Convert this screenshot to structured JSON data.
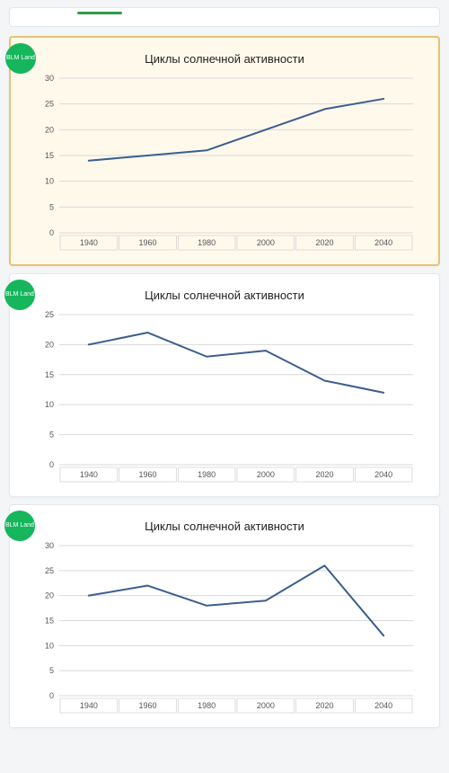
{
  "badge_text": "BLM\nLand",
  "badge_color": "#15b65c",
  "top_accent_color": "#2f9c48",
  "page_bg": "#f3f5f7",
  "selected_bg": "#fff9ec",
  "selected_border": "#e8c271",
  "card_border": "#e4e8eb",
  "charts": [
    {
      "selected": true,
      "title": "Циклы солнечной активности",
      "type": "line",
      "categories": [
        "1940",
        "1960",
        "1980",
        "2000",
        "2020",
        "2040"
      ],
      "values": [
        14,
        15,
        16,
        20,
        24,
        26
      ],
      "ylim": [
        0,
        30
      ],
      "ytick_step": 5,
      "line_color": "#3a5f8f",
      "line_width": 2,
      "grid_color": "#d9d9d9",
      "axis_color": "#cfcfcf",
      "label_color": "#555555",
      "label_fontsize": 9,
      "title_fontsize": 13
    },
    {
      "selected": false,
      "title": "Циклы солнечной активности",
      "type": "line",
      "categories": [
        "1940",
        "1960",
        "1980",
        "2000",
        "2020",
        "2040"
      ],
      "values": [
        20,
        22,
        18,
        19,
        14,
        12
      ],
      "ylim": [
        0,
        25
      ],
      "ytick_step": 5,
      "line_color": "#3a5f8f",
      "line_width": 2,
      "grid_color": "#d9d9d9",
      "axis_color": "#cfcfcf",
      "label_color": "#555555",
      "label_fontsize": 9,
      "title_fontsize": 13
    },
    {
      "selected": false,
      "title": "Циклы солнечной активности",
      "type": "line",
      "categories": [
        "1940",
        "1960",
        "1980",
        "2000",
        "2020",
        "2040"
      ],
      "values": [
        20,
        22,
        18,
        19,
        26,
        12
      ],
      "ylim": [
        0,
        30
      ],
      "ytick_step": 5,
      "line_color": "#3a5f8f",
      "line_width": 2,
      "grid_color": "#d9d9d9",
      "axis_color": "#cfcfcf",
      "label_color": "#555555",
      "label_fontsize": 9,
      "title_fontsize": 13
    }
  ]
}
